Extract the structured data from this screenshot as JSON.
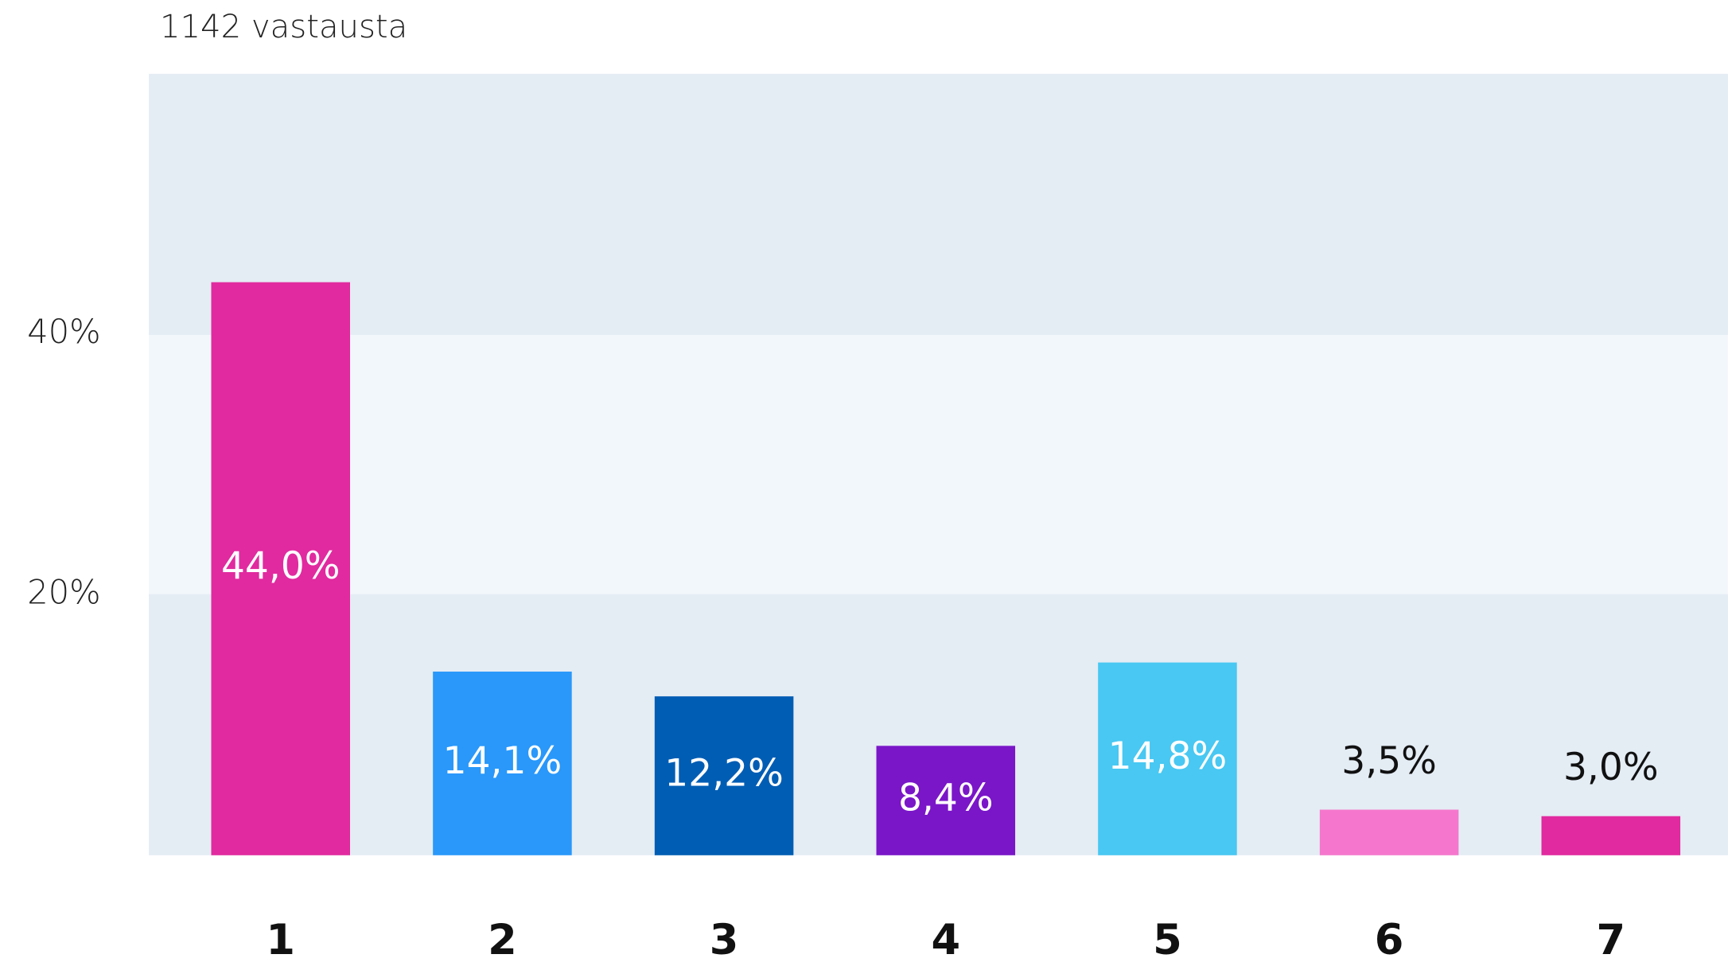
{
  "chart_data": {
    "type": "bar",
    "title": "1142 vastausta",
    "categories": [
      "1",
      "2",
      "3",
      "4",
      "5",
      "6",
      "7"
    ],
    "values": [
      44.0,
      14.1,
      12.2,
      8.4,
      14.8,
      3.5,
      3.0
    ],
    "value_labels": [
      "44,0%",
      "14,1%",
      "12,2%",
      "8,4%",
      "14,8%",
      "3,5%",
      "3,0%"
    ],
    "colors": [
      "#e12a9f",
      "#2998fa",
      "#005db4",
      "#7a16c8",
      "#48c8f2",
      "#f577cd",
      "#e12a9f"
    ],
    "ylim": [
      0,
      60
    ],
    "yticks": [
      {
        "value": 20,
        "label": "20%"
      },
      {
        "value": 40,
        "label": "40%"
      }
    ],
    "grid": true
  }
}
